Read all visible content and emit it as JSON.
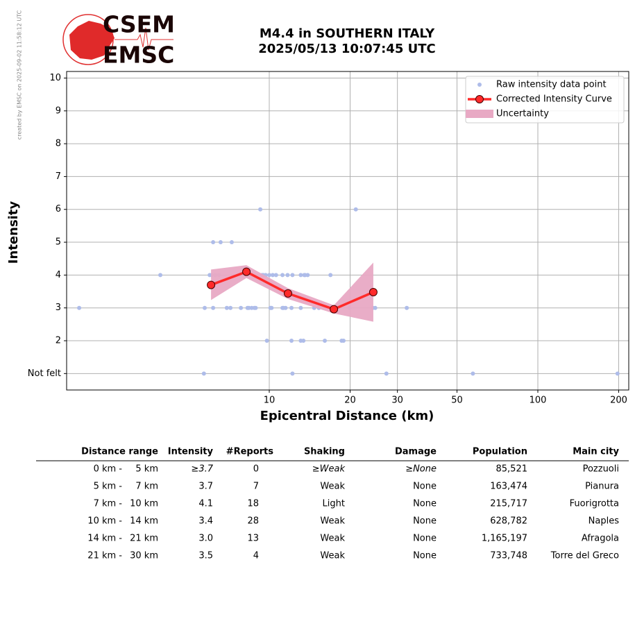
{
  "side_note": "created by EMSC on 2025-09-02 11:58:12 UTC",
  "logo": {
    "top": "CSEM",
    "bottom": "EMSC"
  },
  "chart_data": {
    "type": "scatter",
    "title": [
      "M4.4 in SOUTHERN ITALY",
      "2025/05/13 10:07:45 UTC"
    ],
    "xlabel": "Epicentral Distance (km)",
    "ylabel": "Intensity",
    "xscale": "log",
    "xlim": [
      1.76,
      218
    ],
    "ylim": [
      0.5,
      10.2
    ],
    "xticks": [
      10,
      20,
      30,
      50,
      100,
      200
    ],
    "yticks": [
      {
        "value": 1,
        "label": "Not felt"
      },
      2,
      3,
      4,
      5,
      6,
      7,
      8,
      9,
      10
    ],
    "grid": true,
    "legend": "upper right",
    "series": [
      {
        "name": "Raw intensity data point",
        "kind": "points",
        "color": "#aebce9",
        "x": [
          1.96,
          3.93,
          5.71,
          5.75,
          6.18,
          6.18,
          6.0,
          6.1,
          6.3,
          6.5,
          6.59,
          6.95,
          7.17,
          7.25,
          7.84,
          8.3,
          8.4,
          8.6,
          8.8,
          8.9,
          9.26,
          9.4,
          9.5,
          9.7,
          9.8,
          10.1,
          10.2,
          10.0,
          10.3,
          10.6,
          11.2,
          11.2,
          11.3,
          11.5,
          11.7,
          12.1,
          12.2,
          12.2,
          12.1,
          13.1,
          13.1,
          13.1,
          13.4,
          13.5,
          13.6,
          13.9,
          14.7,
          15.3,
          16.1,
          16.9,
          18.6,
          18.9,
          21.0,
          19.9,
          24.3,
          24.8,
          27.3,
          32.5,
          57.3,
          198
        ],
        "values": [
          3,
          4,
          1,
          3,
          5,
          3,
          4,
          4,
          4,
          4,
          5,
          3,
          3,
          5,
          3,
          3,
          3,
          3,
          3,
          3,
          6,
          4,
          4,
          4,
          2,
          3,
          3,
          4,
          4,
          4,
          4,
          3,
          3,
          3,
          4,
          2,
          4,
          1,
          3,
          2,
          4,
          3,
          2,
          4,
          4,
          4,
          3,
          3,
          2,
          4,
          2,
          2,
          6,
          3,
          3,
          3,
          1,
          3,
          1,
          1
        ]
      },
      {
        "name": "Corrected Intensity Curve",
        "kind": "line",
        "color": "#ff2a2a",
        "x": [
          6.07,
          8.22,
          11.74,
          17.4,
          24.4
        ],
        "values": [
          3.7,
          4.1,
          3.44,
          2.96,
          3.48
        ]
      },
      {
        "name": "Uncertainty",
        "kind": "band",
        "color": "#e8a9c4",
        "x": [
          6.07,
          8.22,
          11.74,
          17.4,
          24.4
        ],
        "lower": [
          3.24,
          3.91,
          3.27,
          2.83,
          2.58
        ],
        "upper": [
          4.17,
          4.3,
          3.6,
          3.08,
          4.38
        ]
      }
    ]
  },
  "table": {
    "header": [
      "Distance range",
      "Intensity",
      "#Reports",
      "Shaking",
      "Damage",
      "Population",
      "Main city"
    ],
    "rows": [
      [
        "0 km -",
        "5 km",
        "≥3.7",
        "0",
        "≥Weak",
        "≥None",
        "85,521",
        "Pozzuoli"
      ],
      [
        "5 km -",
        "7 km",
        "3.7",
        "7",
        "Weak",
        "None",
        "163,474",
        "Pianura"
      ],
      [
        "7 km -",
        "10 km",
        "4.1",
        "18",
        "Light",
        "None",
        "215,717",
        "Fuorigrotta"
      ],
      [
        "10 km -",
        "14 km",
        "3.4",
        "28",
        "Weak",
        "None",
        "628,782",
        "Naples"
      ],
      [
        "14 km -",
        "21 km",
        "3.0",
        "13",
        "Weak",
        "None",
        "1,165,197",
        "Afragola"
      ],
      [
        "21 km -",
        "30 km",
        "3.5",
        "4",
        "Weak",
        "None",
        "733,748",
        "Torre del Greco"
      ]
    ]
  }
}
